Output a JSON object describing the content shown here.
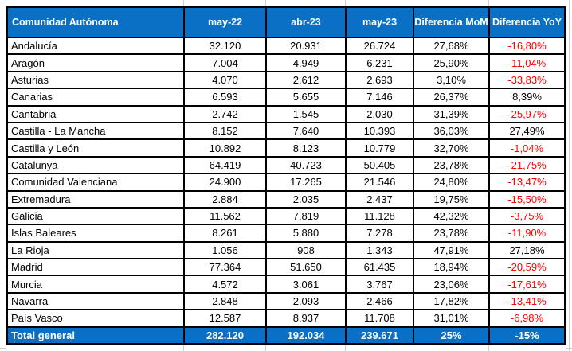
{
  "colors": {
    "header_bg": "#0a70c6",
    "header_text": "#ffffff",
    "negative_value": "#ff0000",
    "value_text": "#000000",
    "border": "#000000"
  },
  "table": {
    "header": {
      "region": "Comunidad Autónoma",
      "columns": [
        "may-22",
        "abr-23",
        "may-23",
        "Diferencia MoM",
        "Diferencia YoY"
      ]
    },
    "rows": [
      {
        "name": "Andalucía",
        "values": [
          "32.120",
          "20.931",
          "26.724"
        ],
        "mom": "27,68%",
        "yoy": "-16,80%",
        "total": false
      },
      {
        "name": "Aragón",
        "values": [
          "7.004",
          "4.949",
          "6.231"
        ],
        "mom": "25,90%",
        "yoy": "-11,04%",
        "total": false
      },
      {
        "name": "Asturias",
        "values": [
          "4.070",
          "2.612",
          "2.693"
        ],
        "mom": "3,10%",
        "yoy": "-33,83%",
        "total": false
      },
      {
        "name": "Canarias",
        "values": [
          "6.593",
          "5.655",
          "7.146"
        ],
        "mom": "26,37%",
        "yoy": "8,39%",
        "total": false
      },
      {
        "name": "Cantabria",
        "values": [
          "2.742",
          "1.545",
          "2.030"
        ],
        "mom": "31,39%",
        "yoy": "-25,97%",
        "total": false
      },
      {
        "name": "Castilla - La Mancha",
        "values": [
          "8.152",
          "7.640",
          "10.393"
        ],
        "mom": "36,03%",
        "yoy": "27,49%",
        "total": false
      },
      {
        "name": "Castilla y León",
        "values": [
          "10.892",
          "8.123",
          "10.779"
        ],
        "mom": "32,70%",
        "yoy": "-1,04%",
        "total": false
      },
      {
        "name": "Catalunya",
        "values": [
          "64.419",
          "40.723",
          "50.405"
        ],
        "mom": "23,78%",
        "yoy": "-21,75%",
        "total": false
      },
      {
        "name": "Comunidad Valenciana",
        "values": [
          "24.900",
          "17.265",
          "21.546"
        ],
        "mom": "24,80%",
        "yoy": "-13,47%",
        "total": false
      },
      {
        "name": "Extremadura",
        "values": [
          "2.884",
          "2.035",
          "2.437"
        ],
        "mom": "19,75%",
        "yoy": "-15,50%",
        "total": false
      },
      {
        "name": "Galicia",
        "values": [
          "11.562",
          "7.819",
          "11.128"
        ],
        "mom": "42,32%",
        "yoy": "-3,75%",
        "total": false
      },
      {
        "name": "Islas Baleares",
        "values": [
          "8.261",
          "5.880",
          "7.278"
        ],
        "mom": "23,78%",
        "yoy": "-11,90%",
        "total": false
      },
      {
        "name": "La Rioja",
        "values": [
          "1.056",
          "908",
          "1.343"
        ],
        "mom": "47,91%",
        "yoy": "27,18%",
        "total": false
      },
      {
        "name": "Madrid",
        "values": [
          "77.364",
          "51.650",
          "61.435"
        ],
        "mom": "18,94%",
        "yoy": "-20,59%",
        "total": false
      },
      {
        "name": "Murcia",
        "values": [
          "4.572",
          "3.061",
          "3.767"
        ],
        "mom": "23,06%",
        "yoy": "-17,61%",
        "total": false
      },
      {
        "name": "Navarra",
        "values": [
          "2.848",
          "2.093",
          "2.466"
        ],
        "mom": "17,82%",
        "yoy": "-13,41%",
        "total": false
      },
      {
        "name": "País Vasco",
        "values": [
          "12.587",
          "8.937",
          "11.708"
        ],
        "mom": "31,01%",
        "yoy": "-6,98%",
        "total": false
      },
      {
        "name": "Total general",
        "values": [
          "282.120",
          "192.034",
          "239.671"
        ],
        "mom": "25%",
        "yoy": "-15%",
        "total": true
      }
    ]
  }
}
